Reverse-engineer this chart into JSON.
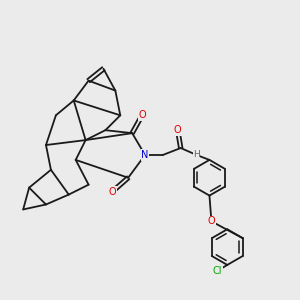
{
  "bg_color": "#ebebeb",
  "bond_color": "#1a1a1a",
  "atom_colors": {
    "O": "#e00000",
    "N": "#0000cc",
    "Cl": "#00aa00",
    "H": "#606060",
    "C": "#1a1a1a"
  },
  "font_size": 7.0,
  "line_width": 1.3,
  "figsize": [
    3.0,
    3.0
  ],
  "dpi": 100
}
